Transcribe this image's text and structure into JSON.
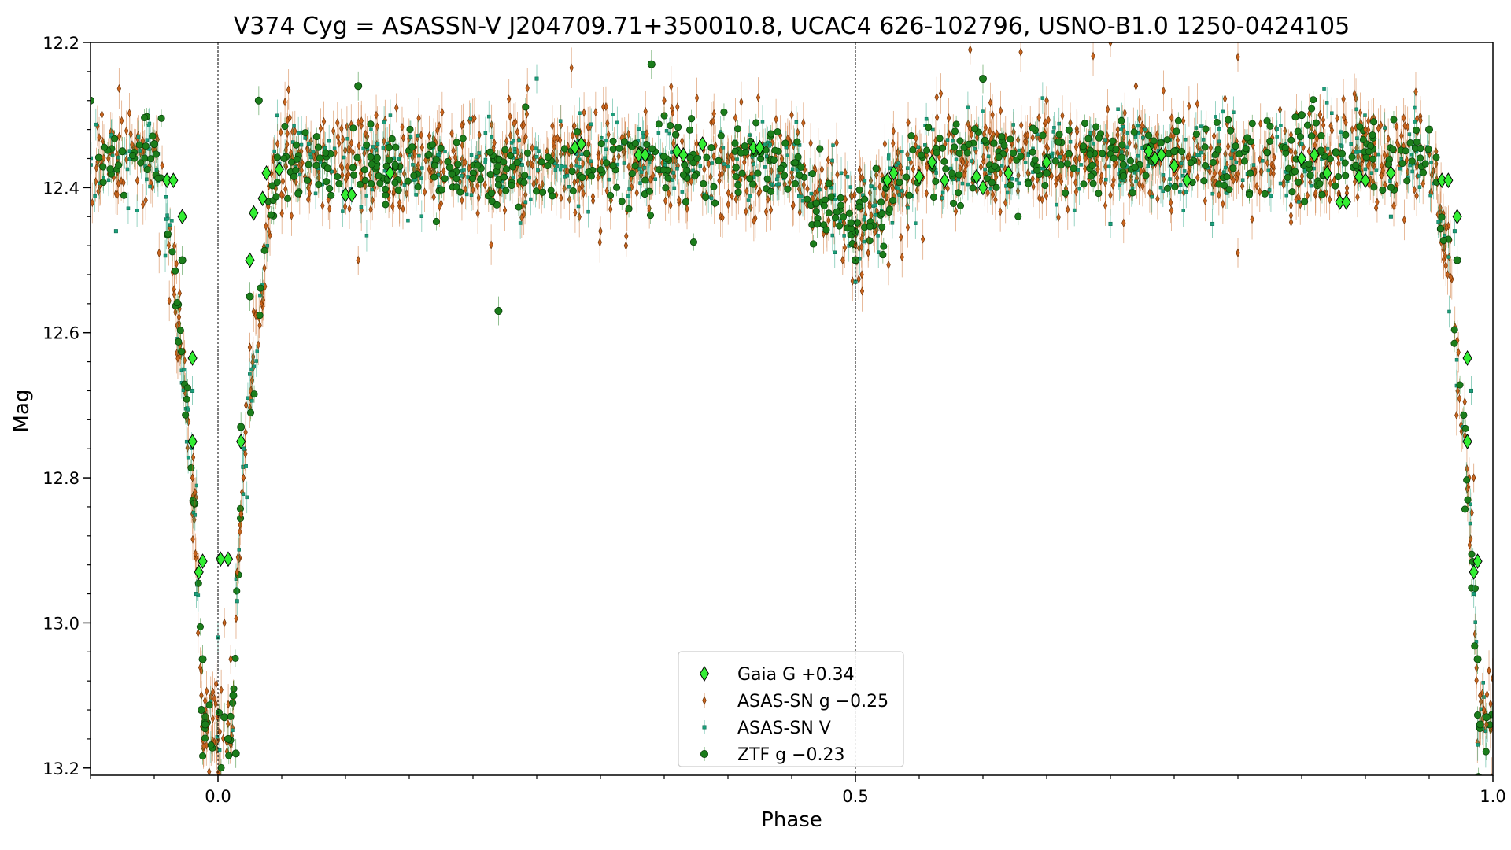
{
  "chart_data": {
    "type": "scatter",
    "title": "V374 Cyg = ASASSN-V J204709.71+350010.8, UCAC4 626-102796, USNO-B1.0 1250-0424105",
    "xlabel": "Phase",
    "ylabel": "Mag",
    "xlim": [
      -0.1,
      1.0
    ],
    "ylim": [
      13.21,
      12.2
    ],
    "y_inverted": true,
    "x_ticks": [
      {
        "value": 0.0,
        "label": "0.0"
      },
      {
        "value": 0.5,
        "label": "0.5"
      },
      {
        "value": 1.0,
        "label": "1.0"
      }
    ],
    "y_ticks": [
      {
        "value": 12.2,
        "label": "12.2"
      },
      {
        "value": 12.4,
        "label": "12.4"
      },
      {
        "value": 12.6,
        "label": "12.6"
      },
      {
        "value": 12.8,
        "label": "12.8"
      },
      {
        "value": 13.0,
        "label": "13.0"
      },
      {
        "value": 13.2,
        "label": "13.2"
      }
    ],
    "vlines": [
      0.0,
      0.5
    ],
    "grid": false,
    "legend_position": "bottom-center",
    "series": [
      {
        "name": "Gaia G +0.34",
        "marker": "diamond",
        "color": "#33ee33",
        "points": [
          [
            -0.04,
            12.39
          ],
          [
            -0.035,
            12.39
          ],
          [
            -0.028,
            12.44
          ],
          [
            -0.02,
            12.635
          ],
          [
            -0.02,
            12.75
          ],
          [
            -0.015,
            12.93
          ],
          [
            -0.012,
            12.915
          ],
          [
            0.002,
            12.912
          ],
          [
            0.008,
            12.912
          ],
          [
            0.018,
            12.75
          ],
          [
            0.025,
            12.5
          ],
          [
            0.028,
            12.435
          ],
          [
            0.035,
            12.415
          ],
          [
            0.038,
            12.38
          ],
          [
            0.048,
            12.375
          ],
          [
            0.1,
            12.41
          ],
          [
            0.105,
            12.41
          ],
          [
            0.135,
            12.38
          ],
          [
            0.28,
            12.345
          ],
          [
            0.285,
            12.34
          ],
          [
            0.33,
            12.355
          ],
          [
            0.335,
            12.355
          ],
          [
            0.36,
            12.35
          ],
          [
            0.365,
            12.355
          ],
          [
            0.38,
            12.34
          ],
          [
            0.42,
            12.345
          ],
          [
            0.425,
            12.345
          ],
          [
            0.525,
            12.39
          ],
          [
            0.53,
            12.38
          ],
          [
            0.55,
            12.385
          ],
          [
            0.56,
            12.365
          ],
          [
            0.57,
            12.39
          ],
          [
            0.595,
            12.385
          ],
          [
            0.6,
            12.4
          ],
          [
            0.62,
            12.38
          ],
          [
            0.65,
            12.365
          ],
          [
            0.73,
            12.35
          ],
          [
            0.735,
            12.36
          ],
          [
            0.74,
            12.355
          ],
          [
            0.75,
            12.37
          ],
          [
            0.76,
            12.39
          ],
          [
            0.85,
            12.36
          ],
          [
            0.86,
            12.355
          ],
          [
            0.87,
            12.38
          ],
          [
            0.88,
            12.42
          ],
          [
            0.885,
            12.42
          ],
          [
            0.895,
            12.385
          ],
          [
            0.9,
            12.39
          ],
          [
            0.92,
            12.38
          ],
          [
            0.96,
            12.39
          ],
          [
            0.965,
            12.39
          ],
          [
            0.972,
            12.44
          ],
          [
            0.98,
            12.635
          ],
          [
            0.98,
            12.75
          ],
          [
            0.985,
            12.93
          ],
          [
            0.988,
            12.915
          ]
        ]
      },
      {
        "name": "ASAS-SN g −0.25",
        "marker": "thin-diamond",
        "color": "#c8641e",
        "points": [
          [
            -0.02,
            12.8
          ],
          [
            -0.018,
            12.82
          ],
          [
            -0.013,
            13.1
          ],
          [
            -0.01,
            13.12
          ],
          [
            -0.008,
            13.14
          ],
          [
            0.005,
            13.0
          ],
          [
            0.01,
            13.05
          ],
          [
            0.012,
            13.1
          ],
          [
            0.015,
            12.93
          ],
          [
            0.018,
            12.85
          ],
          [
            0.02,
            12.8
          ],
          [
            0.022,
            12.7
          ],
          [
            0.025,
            12.62
          ],
          [
            0.14,
            12.29
          ],
          [
            0.3,
            12.46
          ],
          [
            0.32,
            12.48
          ],
          [
            0.49,
            12.5
          ],
          [
            0.5,
            12.48
          ],
          [
            0.505,
            12.52
          ],
          [
            0.51,
            12.49
          ],
          [
            0.59,
            12.21
          ],
          [
            0.7,
            12.2
          ],
          [
            0.8,
            12.22
          ],
          [
            0.8,
            12.49
          ],
          [
            0.11,
            12.5
          ],
          [
            0.35,
            12.28
          ],
          [
            0.45,
            12.3
          ],
          [
            0.65,
            12.28
          ],
          [
            0.72,
            12.26
          ],
          [
            0.9,
            12.32
          ],
          [
            0.985,
            12.8
          ],
          [
            0.99,
            13.1
          ],
          [
            0.995,
            13.14
          ],
          [
            0.993,
            13.12
          ]
        ]
      },
      {
        "name": "ASAS-SN V",
        "marker": "square",
        "color": "#1a9e7a",
        "points": [
          [
            -0.08,
            12.46
          ],
          [
            -0.02,
            12.68
          ],
          [
            -0.017,
            12.96
          ],
          [
            0.0,
            13.02
          ],
          [
            0.015,
            12.97
          ],
          [
            0.02,
            12.76
          ],
          [
            0.25,
            12.25
          ],
          [
            0.5,
            12.53
          ],
          [
            0.7,
            12.45
          ],
          [
            0.78,
            12.45
          ],
          [
            0.92,
            12.44
          ],
          [
            0.97,
            12.46
          ],
          [
            0.983,
            12.68
          ],
          [
            0.985,
            12.96
          ]
        ]
      },
      {
        "name": "ZTF g −0.23",
        "marker": "circle",
        "color": "#1b7d1b",
        "points": [
          [
            -0.1,
            12.28
          ],
          [
            -0.075,
            12.35
          ],
          [
            -0.05,
            12.34
          ],
          [
            -0.028,
            12.5
          ],
          [
            -0.012,
            13.05
          ],
          [
            -0.013,
            13.12
          ],
          [
            -0.01,
            13.14
          ],
          [
            0.005,
            13.13
          ],
          [
            0.008,
            13.16
          ],
          [
            0.012,
            13.1
          ],
          [
            0.014,
            13.18
          ],
          [
            0.018,
            12.73
          ],
          [
            0.025,
            12.55
          ],
          [
            0.032,
            12.28
          ],
          [
            0.11,
            12.26
          ],
          [
            0.22,
            12.57
          ],
          [
            0.34,
            12.23
          ],
          [
            0.47,
            12.45
          ],
          [
            0.5,
            12.5
          ],
          [
            0.53,
            12.38
          ],
          [
            0.6,
            12.25
          ],
          [
            0.65,
            12.38
          ],
          [
            0.75,
            12.35
          ],
          [
            0.85,
            12.3
          ],
          [
            0.95,
            12.32
          ],
          [
            0.972,
            12.5
          ],
          [
            0.988,
            13.05
          ],
          [
            0.99,
            13.14
          ],
          [
            0.995,
            13.13
          ]
        ]
      }
    ]
  }
}
